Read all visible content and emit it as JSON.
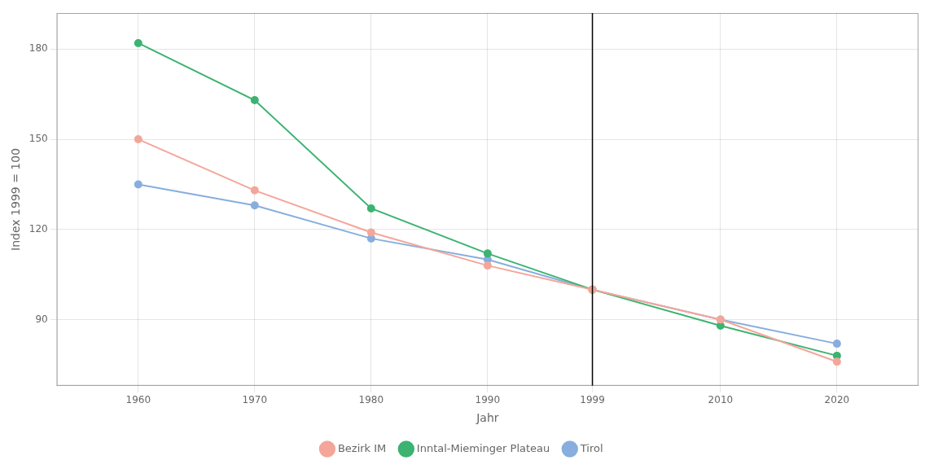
{
  "chart_data": {
    "type": "line",
    "x": [
      1960,
      1970,
      1980,
      1990,
      1999,
      2010,
      2020
    ],
    "series": [
      {
        "name": "Bezirk IM",
        "color": "#F4A69A",
        "marker": "circle",
        "values": [
          150,
          133,
          119,
          108,
          100,
          90,
          76
        ]
      },
      {
        "name": "Inntal-Mieminger Plateau",
        "color": "#3CB371",
        "marker": "circle",
        "values": [
          182,
          163,
          127,
          112,
          100,
          88,
          78
        ]
      },
      {
        "name": "Tirol",
        "color": "#87AEDE",
        "marker": "circle",
        "values": [
          135,
          128,
          117,
          110,
          100,
          90,
          82
        ]
      }
    ],
    "vlines": [
      1999
    ],
    "xlabel": "Jahr",
    "ylabel": "Index 1999 = 100",
    "xlim": [
      1953,
      2027
    ],
    "ylim": [
      68,
      192
    ],
    "xticks": [
      1960,
      1970,
      1980,
      1990,
      1999,
      2010,
      2020
    ],
    "yticks": [
      90,
      120,
      150,
      180
    ],
    "grid": true,
    "legend": "bottom"
  }
}
